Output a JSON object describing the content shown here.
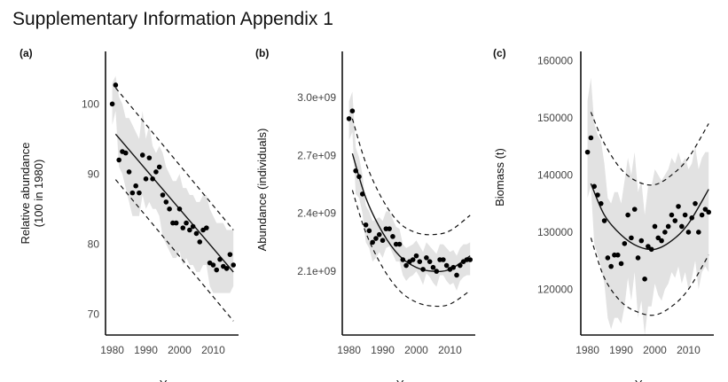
{
  "title": "Supplementary Information Appendix 1",
  "chart_data": [
    {
      "type": "scatter",
      "panel_label": "(a)",
      "xlabel": "Year",
      "ylabel": [
        "Relative abundance",
        "(100 in 1980)"
      ],
      "xlim": [
        1978,
        2017
      ],
      "ylim": [
        67,
        107
      ],
      "xticks": [
        1980,
        1990,
        2000,
        2010
      ],
      "yticks": [
        70,
        80,
        90,
        100
      ],
      "x": [
        1980,
        1981,
        1982,
        1983,
        1984,
        1985,
        1986,
        1987,
        1988,
        1989,
        1990,
        1991,
        1992,
        1993,
        1994,
        1995,
        1996,
        1997,
        1998,
        1999,
        2000,
        2001,
        2002,
        2003,
        2004,
        2005,
        2006,
        2007,
        2008,
        2009,
        2010,
        2011,
        2012,
        2013,
        2014,
        2015,
        2016
      ],
      "y": [
        100,
        102.7,
        92,
        93.2,
        93,
        90.3,
        87.3,
        88.3,
        87.3,
        92.7,
        89.3,
        92.3,
        89.3,
        90.3,
        91,
        87,
        86,
        85,
        83,
        83,
        85,
        82.3,
        83,
        82,
        82.5,
        81.5,
        80.3,
        82,
        82.3,
        77.3,
        77,
        76.3,
        77.8,
        76.8,
        76.5,
        78.5,
        77
      ],
      "trend": {
        "x": [
          1981,
          2016
        ],
        "y": [
          95.7,
          76
        ]
      },
      "upper_bound": {
        "x": [
          1981,
          2016
        ],
        "y": [
          102.3,
          82
        ]
      },
      "lower_bound": {
        "x": [
          1981,
          2016
        ],
        "y": [
          89.2,
          69
        ]
      },
      "band_upper": [
        103,
        104,
        101,
        100,
        98,
        98,
        97,
        96,
        95,
        99,
        95,
        97,
        94,
        93,
        94,
        93,
        91,
        90,
        89,
        89,
        90,
        88,
        88,
        87,
        87,
        86,
        86,
        87,
        87,
        85,
        84,
        83,
        83,
        83,
        82,
        82,
        82
      ],
      "band_lower": [
        97,
        99,
        91,
        90,
        88,
        86,
        84,
        84,
        84,
        87,
        85,
        86,
        85,
        85,
        84,
        81,
        80,
        79,
        78,
        78,
        79,
        77,
        78,
        77,
        77,
        76,
        76,
        77,
        77,
        74,
        73,
        73,
        73,
        73,
        73,
        73,
        74
      ],
      "grid": false
    },
    {
      "type": "scatter",
      "panel_label": "(b)",
      "xlabel": "Year",
      "ylabel": [
        "Abundance (individuals)"
      ],
      "xlim": [
        1978,
        2017
      ],
      "ylim": [
        1770000000.0,
        3220000000.0
      ],
      "xticks": [
        1980,
        1990,
        2000,
        2010
      ],
      "yticks": [
        2100000000.0,
        2400000000.0,
        2700000000.0,
        3000000000.0
      ],
      "ytick_labels": [
        "2.1e+09",
        "2.4e+09",
        "2.7e+09",
        "3.0e+09"
      ],
      "x": [
        1980,
        1981,
        1982,
        1983,
        1984,
        1985,
        1986,
        1987,
        1988,
        1989,
        1990,
        1991,
        1992,
        1993,
        1994,
        1995,
        1996,
        1997,
        1998,
        1999,
        2000,
        2001,
        2002,
        2003,
        2004,
        2005,
        2006,
        2007,
        2008,
        2009,
        2010,
        2011,
        2012,
        2013,
        2014,
        2015,
        2016
      ],
      "y": [
        2890000000.0,
        2930000000.0,
        2620000000.0,
        2590000000.0,
        2500000000.0,
        2340000000.0,
        2310000000.0,
        2250000000.0,
        2270000000.0,
        2290000000.0,
        2260000000.0,
        2320000000.0,
        2320000000.0,
        2280000000.0,
        2240000000.0,
        2240000000.0,
        2160000000.0,
        2130000000.0,
        2150000000.0,
        2160000000.0,
        2180000000.0,
        2150000000.0,
        2110000000.0,
        2170000000.0,
        2150000000.0,
        2120000000.0,
        2100000000.0,
        2160000000.0,
        2160000000.0,
        2130000000.0,
        2110000000.0,
        2120000000.0,
        2080000000.0,
        2130000000.0,
        2150000000.0,
        2160000000.0,
        2160000000.0
      ],
      "trend": {
        "x": [
          1981,
          1985,
          1990,
          1995,
          2000,
          2005,
          2010,
          2016
        ],
        "y": [
          2710000000.0,
          2480000000.0,
          2300000000.0,
          2180000000.0,
          2120000000.0,
          2100000000.0,
          2110000000.0,
          2180000000.0
        ]
      },
      "upper_bound": {
        "x": [
          1981,
          1985,
          1990,
          1995,
          2000,
          2005,
          2010,
          2016
        ],
        "y": [
          2890000000.0,
          2660000000.0,
          2470000000.0,
          2350000000.0,
          2300000000.0,
          2290000000.0,
          2310000000.0,
          2390000000.0
        ]
      },
      "lower_bound": {
        "x": [
          1981,
          1985,
          1990,
          1995,
          2000,
          2005,
          2010,
          2016
        ],
        "y": [
          2520000000.0,
          2300000000.0,
          2120000000.0,
          2000000000.0,
          1940000000.0,
          1920000000.0,
          1930000000.0,
          2000000000.0
        ]
      },
      "band_upper": [
        2980000000.0,
        3030000000.0,
        2740000000.0,
        2690000000.0,
        2600000000.0,
        2440000000.0,
        2410000000.0,
        2360000000.0,
        2370000000.0,
        2380000000.0,
        2360000000.0,
        2410000000.0,
        2410000000.0,
        2370000000.0,
        2330000000.0,
        2320000000.0,
        2240000000.0,
        2220000000.0,
        2230000000.0,
        2240000000.0,
        2260000000.0,
        2230000000.0,
        2200000000.0,
        2250000000.0,
        2230000000.0,
        2210000000.0,
        2190000000.0,
        2240000000.0,
        2240000000.0,
        2220000000.0,
        2200000000.0,
        2210000000.0,
        2180000000.0,
        2220000000.0,
        2240000000.0,
        2240000000.0,
        2250000000.0
      ],
      "band_lower": [
        2780000000.0,
        2820000000.0,
        2500000000.0,
        2480000000.0,
        2400000000.0,
        2250000000.0,
        2220000000.0,
        2150000000.0,
        2170000000.0,
        2200000000.0,
        2170000000.0,
        2220000000.0,
        2230000000.0,
        2190000000.0,
        2150000000.0,
        2150000000.0,
        2080000000.0,
        2050000000.0,
        2070000000.0,
        2080000000.0,
        2100000000.0,
        2070000000.0,
        2030000000.0,
        2090000000.0,
        2070000000.0,
        2040000000.0,
        2020000000.0,
        2080000000.0,
        2080000000.0,
        2050000000.0,
        2030000000.0,
        2040000000.0,
        2000000000.0,
        2050000000.0,
        2070000000.0,
        2080000000.0,
        2080000000.0
      ],
      "grid": false
    },
    {
      "type": "scatter",
      "panel_label": "(c)",
      "xlabel": "Year",
      "ylabel": [
        "Biomass (t)"
      ],
      "xlim": [
        1978,
        2017
      ],
      "ylim": [
        112000,
        161000
      ],
      "xticks": [
        1980,
        1990,
        2000,
        2010
      ],
      "yticks": [
        120000,
        130000,
        140000,
        150000,
        160000
      ],
      "x": [
        1980,
        1981,
        1982,
        1983,
        1984,
        1985,
        1986,
        1987,
        1988,
        1989,
        1990,
        1991,
        1992,
        1993,
        1994,
        1995,
        1996,
        1997,
        1998,
        1999,
        2000,
        2001,
        2002,
        2003,
        2004,
        2005,
        2006,
        2007,
        2008,
        2009,
        2010,
        2011,
        2012,
        2013,
        2014,
        2015,
        2016
      ],
      "y": [
        144000,
        146500,
        138000,
        136500,
        135000,
        132000,
        125500,
        124000,
        126000,
        126000,
        124500,
        128000,
        133000,
        129000,
        134000,
        125500,
        128500,
        121800,
        127500,
        127000,
        131000,
        129000,
        128500,
        130000,
        131000,
        133000,
        132000,
        134500,
        131000,
        133000,
        130000,
        132500,
        135000,
        130000,
        133000,
        134000,
        133500
      ],
      "trend": {
        "x": [
          1981,
          1985,
          1990,
          1995,
          2000,
          2005,
          2010,
          2016
        ],
        "y": [
          138500,
          133000,
          129500,
          127500,
          127000,
          128500,
          131500,
          137500
        ]
      },
      "upper_bound": {
        "x": [
          1981,
          1985,
          1990,
          1995,
          2000,
          2005,
          2010,
          2016
        ],
        "y": [
          151000,
          145500,
          141000,
          138800,
          138300,
          140000,
          143000,
          149000
        ]
      },
      "lower_bound": {
        "x": [
          1981,
          1985,
          1990,
          1995,
          2000,
          2005,
          2010,
          2016
        ],
        "y": [
          129000,
          122000,
          117800,
          116000,
          115500,
          117000,
          120000,
          126000
        ]
      },
      "band_upper": [
        153000,
        157000,
        149000,
        147000,
        146000,
        142000,
        136000,
        135000,
        137000,
        137000,
        135000,
        139000,
        143000,
        140000,
        144000,
        137000,
        139000,
        133000,
        138000,
        138000,
        141000,
        140000,
        139000,
        140000,
        141000,
        143000,
        142000,
        144000,
        142000,
        143000,
        141000,
        142000,
        145000,
        141000,
        143000,
        144000,
        144000
      ],
      "band_lower": [
        136000,
        138000,
        128000,
        126000,
        124000,
        121000,
        115000,
        113000,
        115000,
        115000,
        114000,
        117000,
        122000,
        118000,
        123000,
        115000,
        118000,
        112000,
        117000,
        117000,
        121000,
        119000,
        118000,
        120000,
        121000,
        123000,
        122000,
        124000,
        121000,
        123000,
        120000,
        122000,
        125000,
        120000,
        123000,
        124000,
        123000
      ],
      "grid": false
    }
  ]
}
